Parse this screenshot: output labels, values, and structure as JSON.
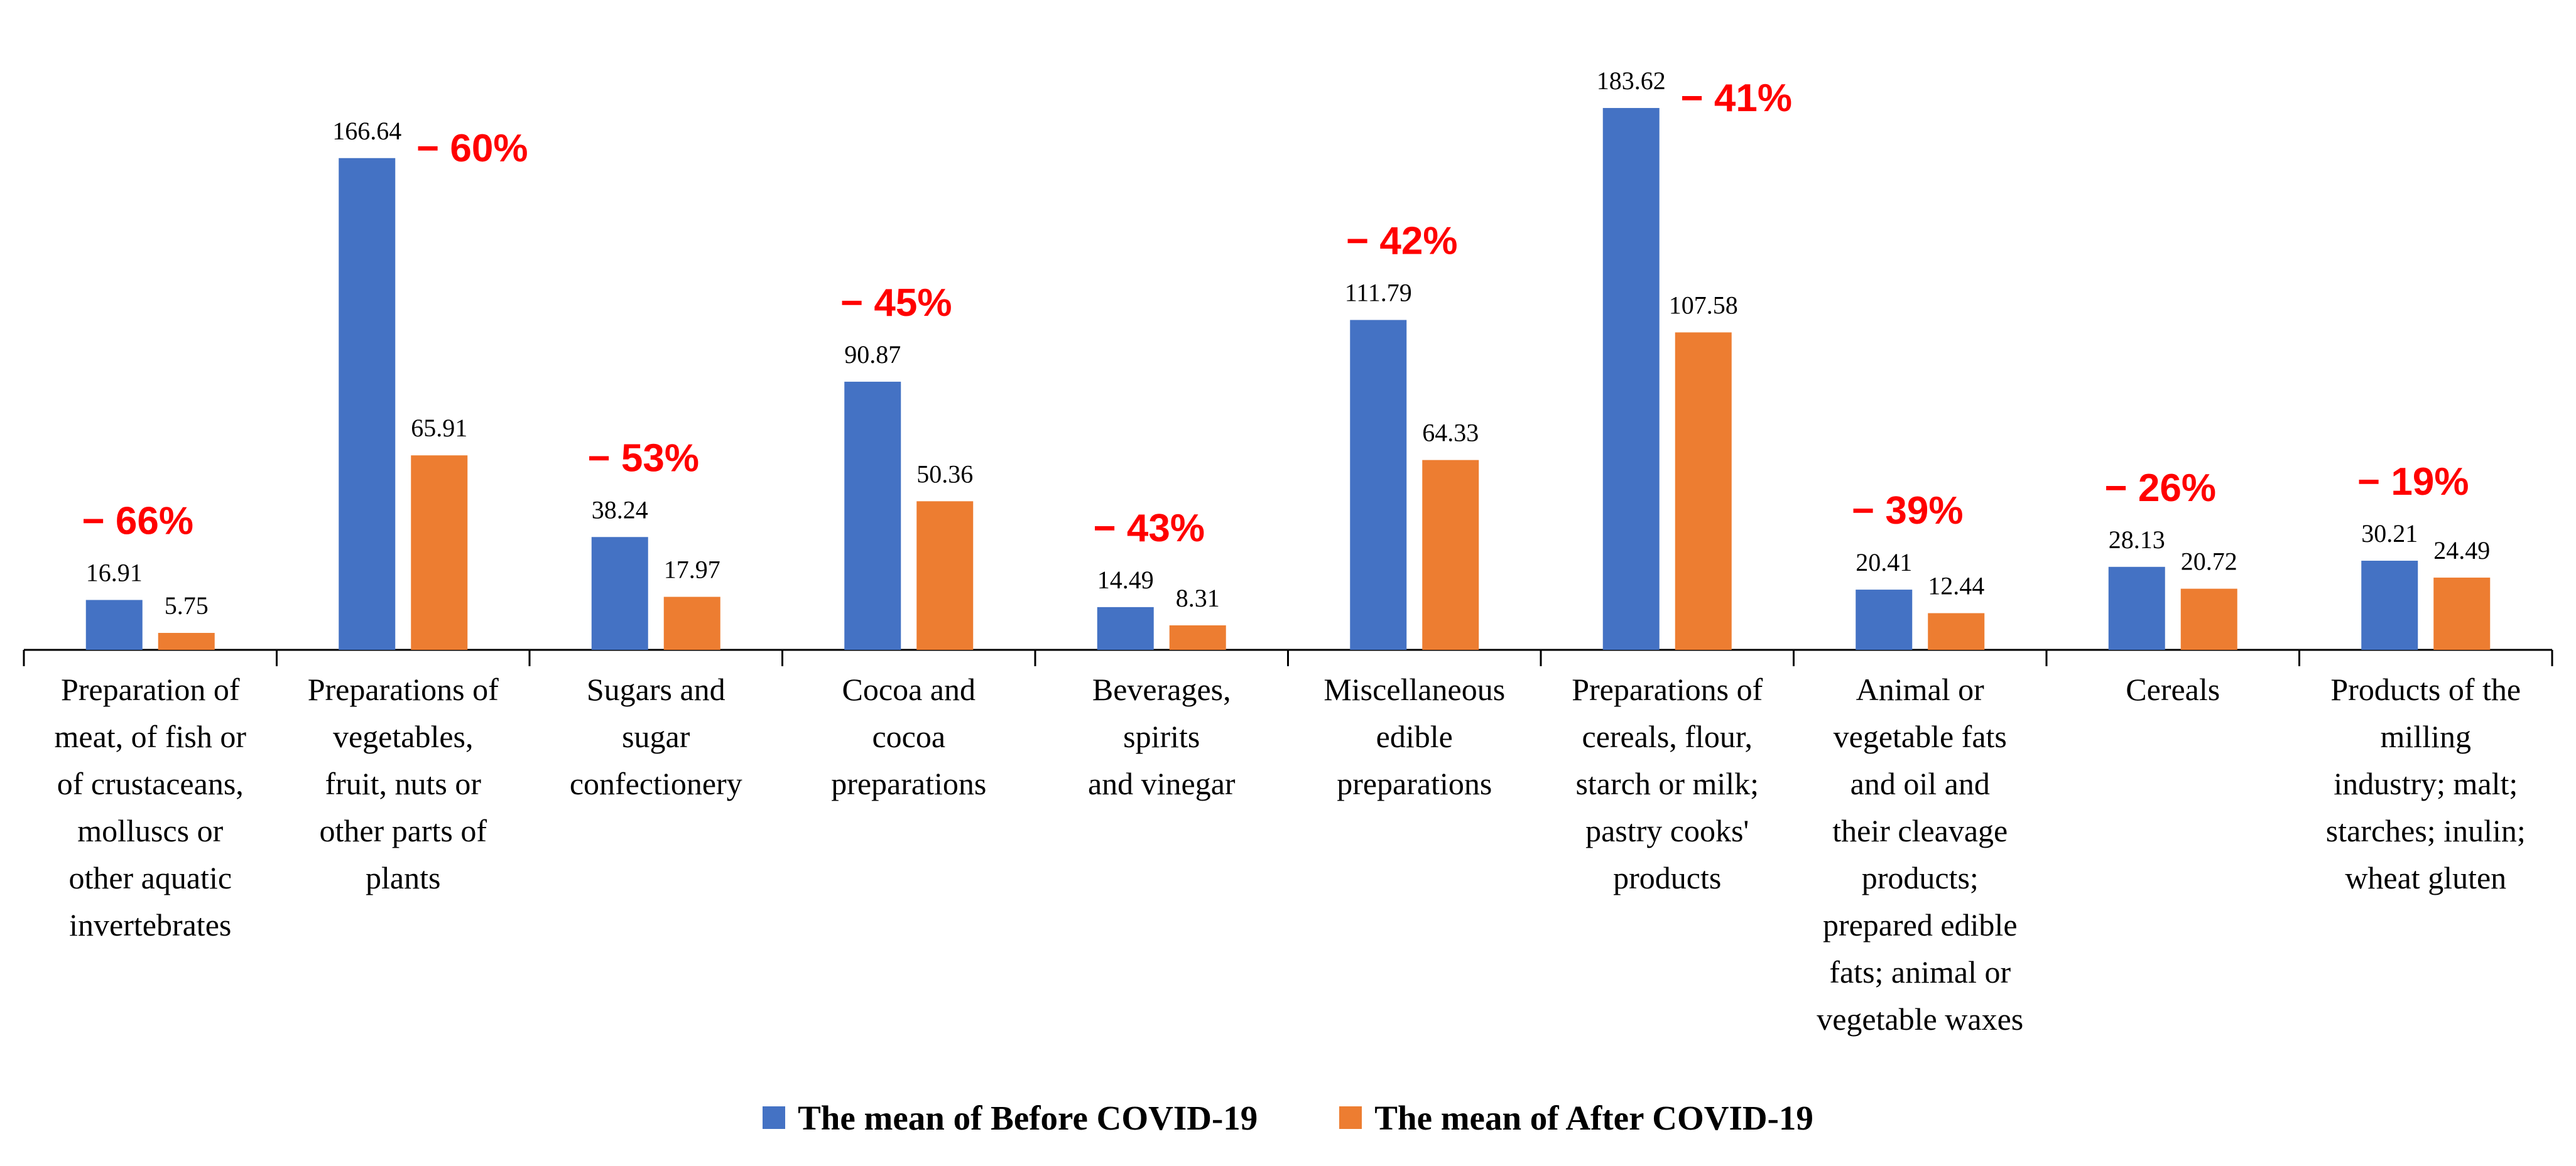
{
  "chart_data": {
    "type": "bar",
    "title": "",
    "xlabel": "",
    "ylabel": "",
    "ylim": [
      0,
      190
    ],
    "grid": false,
    "legend_position": "bottom",
    "categories": [
      [
        "Preparation of",
        "meat, of fish or",
        "of crustaceans,",
        "molluscs or",
        "other aquatic",
        "invertebrates"
      ],
      [
        "Preparations of",
        "vegetables,",
        "fruit, nuts or",
        "other parts of",
        "plants"
      ],
      [
        "Sugars and",
        "sugar",
        "confectionery"
      ],
      [
        "Cocoa and",
        "cocoa",
        "preparations"
      ],
      [
        "Beverages,",
        "spirits",
        "and vinegar"
      ],
      [
        "Miscellaneous",
        "edible",
        "preparations"
      ],
      [
        "Preparations of",
        "cereals, flour,",
        "starch or milk;",
        "pastry cooks'",
        "products"
      ],
      [
        "Animal or",
        "vegetable fats",
        "and oil and",
        "their cleavage",
        "products;",
        "prepared edible",
        "fats; animal or",
        "vegetable waxes"
      ],
      [
        "Cereals"
      ],
      [
        "Products of the",
        "milling",
        "industry; malt;",
        "starches; inulin;",
        "wheat gluten"
      ]
    ],
    "series": [
      {
        "name": "The mean of Before COVID-19",
        "color": "#4472c4",
        "values": [
          16.91,
          166.64,
          38.24,
          90.87,
          14.49,
          111.79,
          183.62,
          20.41,
          28.13,
          30.21
        ],
        "labels": [
          "16.91",
          "166.64",
          "38.24",
          "90.87",
          "14.49",
          "111.79",
          "183.62",
          "20.41",
          "28.13",
          "30.21"
        ]
      },
      {
        "name": "The mean of After COVID-19",
        "color": "#ed7d31",
        "values": [
          5.75,
          65.91,
          17.97,
          50.36,
          8.31,
          64.33,
          107.58,
          12.44,
          20.72,
          24.49
        ],
        "labels": [
          "5.75",
          "65.91",
          "17.97",
          "50.36",
          "8.31",
          "64.33",
          "107.58",
          "12.44",
          "20.72",
          "24.49"
        ]
      }
    ],
    "annotations": [
      "− 66%",
      "− 60%",
      "− 53%",
      "− 45%",
      "− 43%",
      "− 42%",
      "− 41%",
      "− 39%",
      "− 26%",
      "− 19%"
    ],
    "annotation_color": "#ff0000"
  }
}
